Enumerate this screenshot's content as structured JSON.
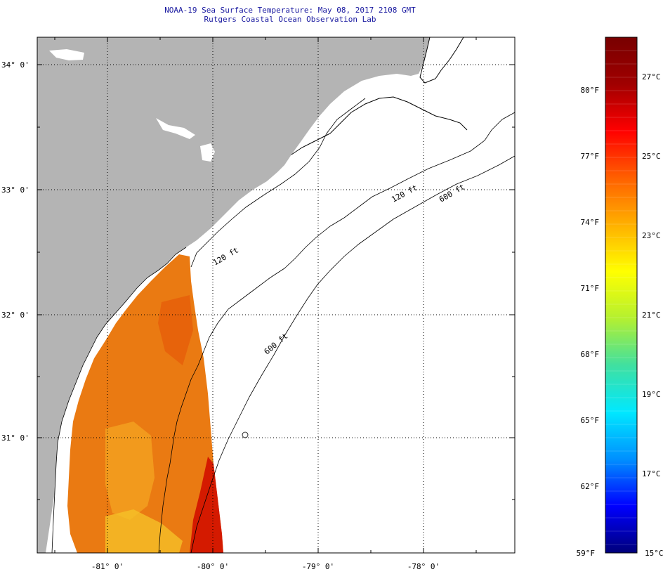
{
  "title": "NOAA-19 Sea Surface Temperature:  May 08, 2017 2108 GMT",
  "subtitle": "Rutgers Coastal Ocean Observation Lab",
  "map": {
    "lat_labels": [
      "34° 0'",
      "33° 0'",
      "32° 0'",
      "31° 0'"
    ],
    "lon_labels": [
      "-81° 0'",
      "-80° 0'",
      "-79° 0'",
      "-78° 0'"
    ],
    "contour_labels": [
      "120 ft",
      "600 ft",
      "600 ft",
      "120 ft"
    ],
    "colors": {
      "land": "#b4b4b4",
      "coastline": "#000000",
      "sst_warm": "#e8700a",
      "sst_hot": "#c80000",
      "sst_mid": "#f2b820"
    }
  },
  "colorbar": {
    "f_labels": [
      "80°F",
      "77°F",
      "74°F",
      "71°F",
      "68°F",
      "65°F",
      "62°F",
      "59°F"
    ],
    "c_labels": [
      "27°C",
      "25°C",
      "23°C",
      "21°C",
      "19°C",
      "17°C",
      "15°C"
    ],
    "gradient_stops": [
      "#00007a",
      "#0000ff",
      "#0090ff",
      "#00e8ff",
      "#40e0a0",
      "#b4f030",
      "#ffff00",
      "#ffb000",
      "#ff6000",
      "#ff0000",
      "#a00000",
      "#780000"
    ]
  }
}
